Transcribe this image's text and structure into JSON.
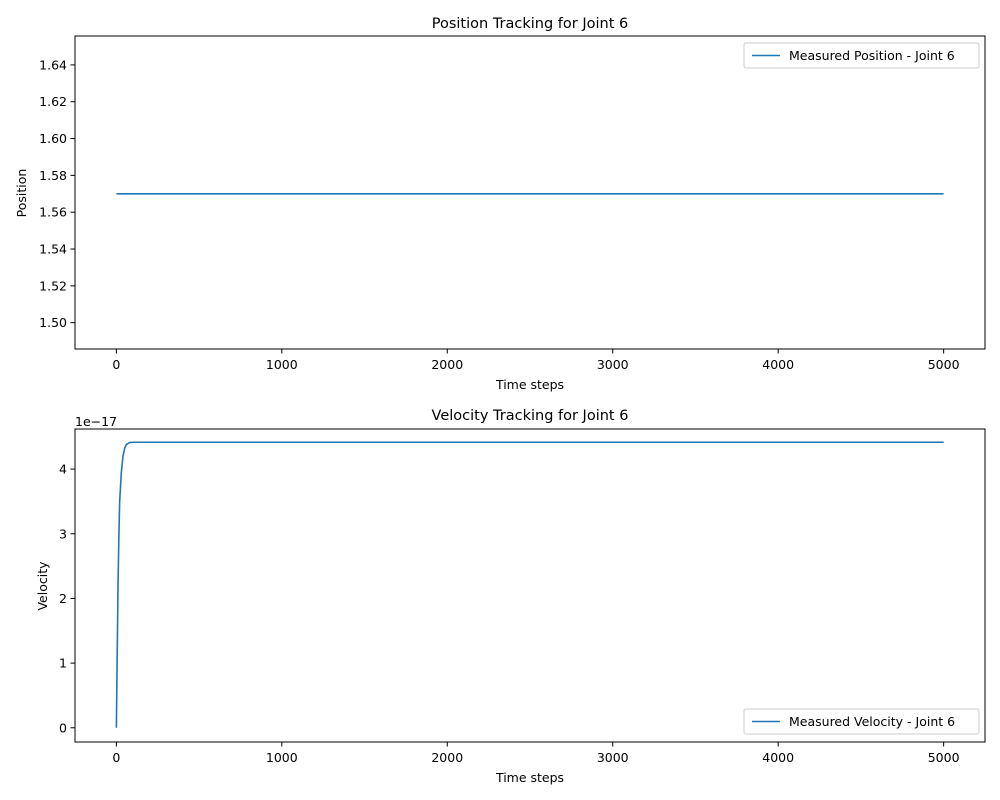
{
  "chart_data": [
    {
      "type": "line",
      "title": "Position Tracking for Joint 6",
      "xlabel": "Time steps",
      "ylabel": "Position",
      "xlim": [
        -250,
        5250
      ],
      "ylim": [
        1.4857,
        1.6557
      ],
      "xticks": [
        0,
        1000,
        2000,
        3000,
        4000,
        5000
      ],
      "xtick_labels": [
        "0",
        "1000",
        "2000",
        "3000",
        "4000",
        "5000"
      ],
      "yticks": [
        1.5,
        1.52,
        1.54,
        1.56,
        1.58,
        1.6,
        1.62,
        1.64
      ],
      "ytick_labels": [
        "1.50",
        "1.52",
        "1.54",
        "1.56",
        "1.58",
        "1.60",
        "1.62",
        "1.64"
      ],
      "legend_position": "upper right",
      "grid": false,
      "series": [
        {
          "name": "Measured Position - Joint 6",
          "color": "#1f77b4",
          "x": [
            0,
            5000
          ],
          "y": [
            1.57,
            1.57
          ]
        }
      ]
    },
    {
      "type": "line",
      "title": "Velocity Tracking for Joint 6",
      "xlabel": "Time steps",
      "ylabel": "Velocity",
      "offset_text": "1e−17",
      "y_scale_note": "values in units of 1e-17",
      "xlim": [
        -250,
        5250
      ],
      "ylim": [
        -0.22,
        4.62
      ],
      "xticks": [
        0,
        1000,
        2000,
        3000,
        4000,
        5000
      ],
      "xtick_labels": [
        "0",
        "1000",
        "2000",
        "3000",
        "4000",
        "5000"
      ],
      "yticks": [
        0,
        1,
        2,
        3,
        4
      ],
      "ytick_labels": [
        "0",
        "1",
        "2",
        "3",
        "4"
      ],
      "legend_position": "lower right",
      "grid": false,
      "series": [
        {
          "name": "Measured Velocity - Joint 6",
          "color": "#1f77b4",
          "x": [
            0,
            5,
            10,
            15,
            20,
            30,
            40,
            50,
            60,
            80,
            100,
            150,
            200,
            500,
            1000,
            2000,
            3000,
            4000,
            5000
          ],
          "y": [
            0.0,
            1.1,
            2.2,
            2.95,
            3.5,
            3.95,
            4.2,
            4.32,
            4.38,
            4.41,
            4.415,
            4.415,
            4.415,
            4.415,
            4.415,
            4.415,
            4.415,
            4.415,
            4.415
          ]
        }
      ]
    }
  ]
}
